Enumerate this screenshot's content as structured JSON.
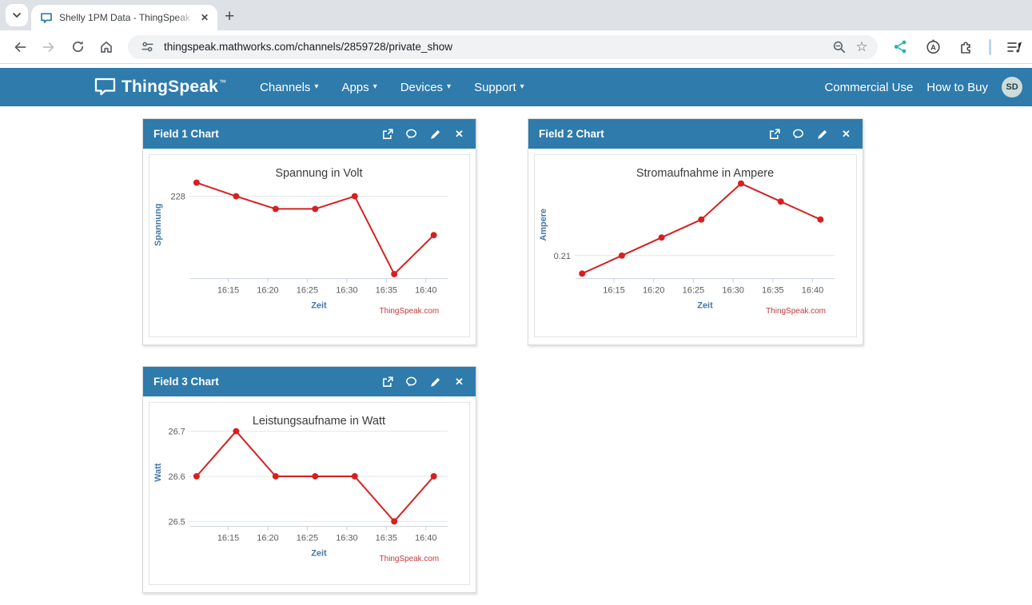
{
  "browser": {
    "tab_title": "Shelly 1PM Data - ThingSpeak I",
    "url": "thingspeak.mathworks.com/channels/2859728/private_show"
  },
  "glyphs": {
    "close_tab": "✕",
    "close_bold": "✕",
    "new_tab_plus": "+",
    "caret_down": "▾",
    "star": "☆"
  },
  "navbar": {
    "logo": "ThingSpeak",
    "logo_tm": "™",
    "items": [
      {
        "label": "Channels"
      },
      {
        "label": "Apps"
      },
      {
        "label": "Devices"
      },
      {
        "label": "Support"
      }
    ],
    "right": [
      {
        "label": "Commercial Use"
      },
      {
        "label": "How to Buy"
      }
    ],
    "avatar_initials": "SD"
  },
  "colors": {
    "navbar_blue": "#2e7bac",
    "line_red": "#d62020",
    "credits_red": "#c03a3a",
    "axis_label_blue": "#4576a8",
    "tick_gray": "#5c5c5c",
    "grid_gray": "#e6e6e6",
    "axis_line": "#ccd2da",
    "share_teal": "#2ab7a9"
  },
  "chart_data": [
    {
      "type": "line",
      "field_label": "Field 1 Chart",
      "title": "Spannung in Volt",
      "xlabel": "Zeit",
      "ylabel": "Spannung",
      "credits": "ThingSpeak.com",
      "x_times": [
        "16:11",
        "16:16",
        "16:21",
        "16:26",
        "16:31",
        "16:36",
        "16:41"
      ],
      "x_minutes": [
        11,
        16,
        21,
        26,
        31,
        36,
        41
      ],
      "values": [
        228.15,
        228.0,
        227.86,
        227.86,
        228.0,
        227.14,
        227.57
      ],
      "y_ticks": [
        {
          "value": 228,
          "label": "228"
        }
      ],
      "ylim": [
        227.09,
        228.28
      ],
      "xlim_minutes": [
        10.17,
        42.77
      ],
      "x_tick_minutes": [
        15,
        20,
        25,
        30,
        35,
        40
      ],
      "x_tick_labels": [
        "16:15",
        "16:20",
        "16:25",
        "16:30",
        "16:35",
        "16:40"
      ],
      "grid": true,
      "legend": "none"
    },
    {
      "type": "line",
      "field_label": "Field 2 Chart",
      "title": "Stromaufnahme in Ampere",
      "xlabel": "Zeit",
      "ylabel": "Ampere",
      "credits": "ThingSpeak.com",
      "x_times": [
        "16:11",
        "16:16",
        "16:21",
        "16:26",
        "16:31",
        "16:36",
        "16:41"
      ],
      "x_minutes": [
        11,
        16,
        21,
        26,
        31,
        36,
        41
      ],
      "values": [
        0.205,
        0.21,
        0.215,
        0.22,
        0.23,
        0.225,
        0.22
      ],
      "y_ticks": [
        {
          "value": 0.21,
          "label": "0.21"
        }
      ],
      "ylim": [
        0.2036,
        0.2335
      ],
      "xlim_minutes": [
        10.17,
        42.77
      ],
      "x_tick_minutes": [
        15,
        20,
        25,
        30,
        35,
        40
      ],
      "x_tick_labels": [
        "16:15",
        "16:20",
        "16:25",
        "16:30",
        "16:35",
        "16:40"
      ],
      "grid": true,
      "legend": "none"
    },
    {
      "type": "line",
      "field_label": "Field 3 Chart",
      "title": "Leistungsaufname in Watt",
      "xlabel": "Zeit",
      "ylabel": "Watt",
      "credits": "ThingSpeak.com",
      "x_times": [
        "16:11",
        "16:16",
        "16:21",
        "16:26",
        "16:31",
        "16:36",
        "16:41"
      ],
      "x_minutes": [
        11,
        16,
        21,
        26,
        31,
        36,
        41
      ],
      "values": [
        26.6,
        26.7,
        26.6,
        26.6,
        26.6,
        26.5,
        26.6
      ],
      "y_ticks": [
        {
          "value": 26.7,
          "label": "26.7"
        },
        {
          "value": 26.6,
          "label": "26.6"
        },
        {
          "value": 26.5,
          "label": "26.5"
        }
      ],
      "ylim": [
        26.489,
        26.728
      ],
      "xlim_minutes": [
        10.17,
        42.77
      ],
      "x_tick_minutes": [
        15,
        20,
        25,
        30,
        35,
        40
      ],
      "x_tick_labels": [
        "16:15",
        "16:20",
        "16:25",
        "16:30",
        "16:35",
        "16:40"
      ],
      "grid": true,
      "legend": "none"
    }
  ]
}
